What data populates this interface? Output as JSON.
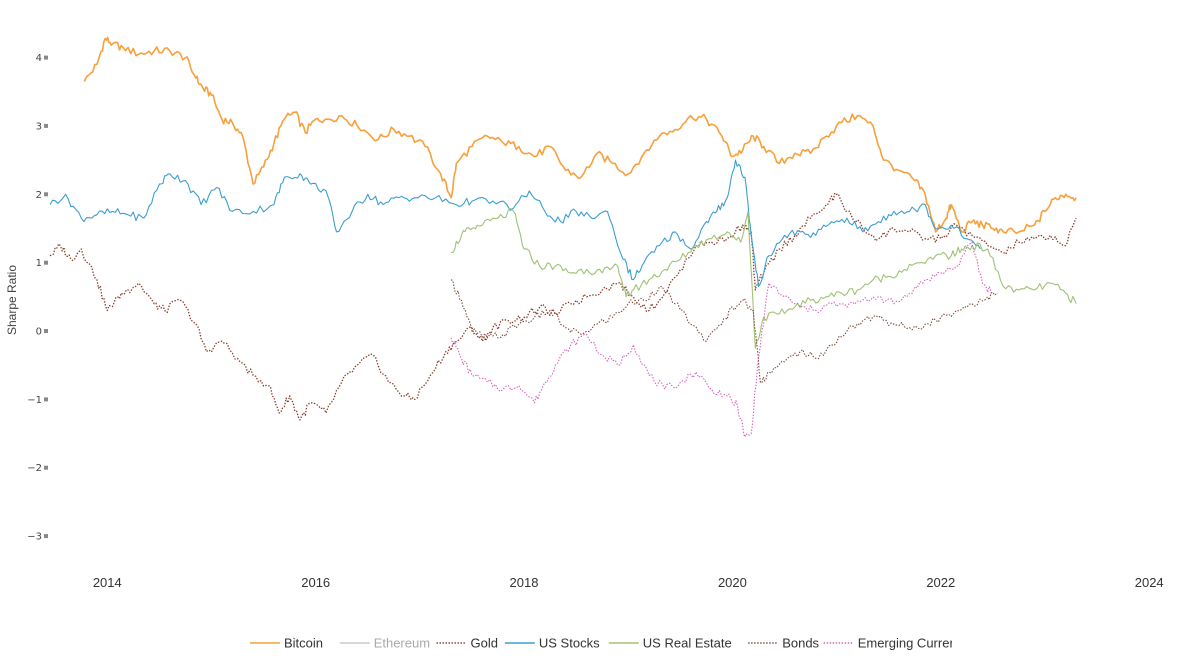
{
  "chart_data": {
    "type": "line",
    "title": "",
    "xlabel": "",
    "ylabel": "Sharpe Ratio",
    "xlim": [
      2013.45,
      2024.2
    ],
    "ylim": [
      -3.35,
      4.55
    ],
    "x_ticks": [
      2014,
      2016,
      2018,
      2020,
      2022,
      2024
    ],
    "x_tick_labels": [
      "2014",
      "2016",
      "2018",
      "2020",
      "2022",
      "2024"
    ],
    "y_ticks": [
      -3,
      -2,
      -1,
      0,
      1,
      2,
      3,
      4
    ],
    "y_tick_labels": [
      "−3",
      "−2",
      "−1",
      "0",
      "1",
      "2",
      "3",
      "4"
    ],
    "grid": false,
    "legend_position": "bottom",
    "series": [
      {
        "name": "Bitcoin",
        "color": "#f7a03c",
        "dash": "solid",
        "width": 1.6,
        "visible": true,
        "x": [
          2013.78,
          2013.9,
          2013.98,
          2014.05,
          2014.15,
          2014.3,
          2014.45,
          2014.6,
          2014.75,
          2014.85,
          2014.92,
          2015.0,
          2015.1,
          2015.2,
          2015.3,
          2015.4,
          2015.5,
          2015.6,
          2015.7,
          2015.8,
          2015.9,
          2016.0,
          2016.1,
          2016.25,
          2016.4,
          2016.6,
          2016.75,
          2016.9,
          2017.05,
          2017.2,
          2017.3,
          2017.35,
          2017.5,
          2017.65,
          2017.8,
          2017.95,
          2018.1,
          2018.25,
          2018.4,
          2018.55,
          2018.7,
          2018.85,
          2019.0,
          2019.15,
          2019.3,
          2019.45,
          2019.6,
          2019.75,
          2019.9,
          2020.0,
          2020.1,
          2020.2,
          2020.3,
          2020.45,
          2020.6,
          2020.75,
          2020.9,
          2021.05,
          2021.2,
          2021.35,
          2021.45,
          2021.6,
          2021.75,
          2021.85,
          2021.95,
          2022.05,
          2022.1,
          2022.2,
          2022.3,
          2022.4,
          2022.5,
          2022.6,
          2022.75,
          2022.9,
          2023.0,
          2023.1,
          2023.2,
          2023.3
        ],
        "y": [
          3.65,
          3.9,
          4.28,
          4.2,
          4.15,
          4.05,
          4.1,
          4.1,
          4.0,
          3.7,
          3.55,
          3.45,
          3.1,
          3.05,
          2.85,
          2.15,
          2.4,
          2.75,
          3.1,
          3.2,
          2.9,
          3.1,
          3.1,
          3.15,
          3.0,
          2.8,
          2.95,
          2.85,
          2.7,
          2.3,
          1.95,
          2.45,
          2.7,
          2.85,
          2.75,
          2.7,
          2.55,
          2.7,
          2.35,
          2.25,
          2.6,
          2.45,
          2.3,
          2.6,
          2.85,
          2.95,
          3.15,
          3.1,
          2.85,
          2.55,
          2.65,
          2.85,
          2.7,
          2.45,
          2.6,
          2.6,
          2.85,
          3.05,
          3.15,
          3.0,
          2.5,
          2.35,
          2.2,
          2.0,
          1.45,
          1.65,
          1.85,
          1.45,
          1.6,
          1.55,
          1.5,
          1.45,
          1.45,
          1.55,
          1.75,
          1.95,
          2.0,
          1.95
        ]
      },
      {
        "name": "Ethereum",
        "color": "#cccccc",
        "dash": "solid",
        "width": 1.2,
        "visible": false,
        "x": [],
        "y": []
      },
      {
        "name": "Gold",
        "color": "#8c3a2a",
        "dash": "dot",
        "width": 1.3,
        "visible": true,
        "x": [
          2013.45,
          2013.55,
          2013.65,
          2013.75,
          2013.9,
          2014.0,
          2014.1,
          2014.2,
          2014.3,
          2014.45,
          2014.55,
          2014.7,
          2014.85,
          2014.95,
          2015.1,
          2015.25,
          2015.4,
          2015.55,
          2015.65,
          2015.75,
          2015.85,
          2015.95,
          2016.1,
          2016.25,
          2016.4,
          2016.55,
          2016.7,
          2016.85,
          2016.95,
          2017.1,
          2017.25,
          2017.35,
          2017.5,
          2017.6,
          2017.7,
          2017.85,
          2018.0,
          2018.15,
          2018.3,
          2018.45,
          2018.6,
          2018.75,
          2018.9,
          2019.05,
          2019.2,
          2019.35,
          2019.5,
          2019.65,
          2019.8,
          2019.95,
          2020.1,
          2020.18,
          2020.22,
          2020.3,
          2020.45,
          2020.6,
          2020.75,
          2020.9,
          2021.0,
          2021.1,
          2021.25,
          2021.4,
          2021.55,
          2021.7,
          2021.85,
          2022.0,
          2022.15,
          2022.3,
          2022.45,
          2022.6,
          2022.75,
          2022.9,
          2023.05,
          2023.2,
          2023.3
        ],
        "y": [
          1.1,
          1.25,
          1.05,
          1.2,
          0.75,
          0.3,
          0.5,
          0.6,
          0.7,
          0.4,
          0.3,
          0.45,
          0.1,
          -0.3,
          -0.15,
          -0.4,
          -0.65,
          -0.8,
          -1.2,
          -0.95,
          -1.3,
          -1.05,
          -1.2,
          -0.75,
          -0.5,
          -0.35,
          -0.75,
          -0.95,
          -1.0,
          -0.65,
          -0.3,
          -0.15,
          0.05,
          -0.15,
          0.05,
          0.15,
          0.2,
          0.35,
          0.25,
          0.4,
          0.5,
          0.6,
          0.7,
          0.5,
          0.3,
          0.55,
          0.9,
          1.25,
          1.3,
          1.35,
          1.55,
          1.45,
          0.6,
          0.85,
          1.2,
          1.4,
          1.65,
          1.85,
          2.0,
          1.75,
          1.5,
          1.35,
          1.5,
          1.45,
          1.35,
          1.35,
          1.55,
          1.4,
          1.25,
          1.15,
          1.3,
          1.35,
          1.4,
          1.25,
          1.65
        ]
      },
      {
        "name": "US Stocks",
        "color": "#3a9fd0",
        "dash": "solid",
        "width": 1.1,
        "visible": true,
        "x": [
          2013.45,
          2013.6,
          2013.75,
          2013.9,
          2014.05,
          2014.2,
          2014.35,
          2014.5,
          2014.6,
          2014.75,
          2014.9,
          2015.05,
          2015.2,
          2015.4,
          2015.6,
          2015.7,
          2015.85,
          2015.95,
          2016.1,
          2016.2,
          2016.35,
          2016.5,
          2016.65,
          2016.8,
          2016.95,
          2017.15,
          2017.35,
          2017.5,
          2017.7,
          2017.9,
          2018.05,
          2018.2,
          2018.35,
          2018.5,
          2018.65,
          2018.8,
          2018.95,
          2019.05,
          2019.15,
          2019.3,
          2019.45,
          2019.6,
          2019.75,
          2019.85,
          2019.95,
          2020.03,
          2020.12,
          2020.18,
          2020.25,
          2020.35,
          2020.5,
          2020.65,
          2020.8,
          2020.95,
          2021.1,
          2021.25,
          2021.4,
          2021.55,
          2021.7,
          2021.85,
          2021.95,
          2022.1,
          2022.25,
          2022.38
        ],
        "y": [
          1.85,
          2.0,
          1.65,
          1.7,
          1.75,
          1.7,
          1.65,
          2.15,
          2.3,
          2.2,
          1.85,
          2.1,
          1.75,
          1.75,
          1.85,
          2.25,
          2.3,
          2.15,
          2.05,
          1.45,
          1.75,
          2.0,
          1.85,
          1.95,
          1.95,
          1.95,
          1.85,
          1.9,
          1.9,
          1.8,
          2.05,
          1.75,
          1.6,
          1.75,
          1.65,
          1.75,
          1.05,
          0.75,
          1.0,
          1.25,
          1.45,
          1.2,
          1.6,
          1.75,
          1.95,
          2.5,
          2.25,
          1.4,
          0.65,
          1.1,
          1.4,
          1.45,
          1.4,
          1.6,
          1.65,
          1.45,
          1.6,
          1.75,
          1.75,
          1.85,
          1.5,
          1.55,
          1.35,
          1.2
        ]
      },
      {
        "name": "US Real Estate",
        "color": "#9fc274",
        "dash": "solid",
        "width": 1.1,
        "visible": true,
        "x": [
          2017.3,
          2017.4,
          2017.5,
          2017.6,
          2017.75,
          2017.9,
          2018.0,
          2018.15,
          2018.3,
          2018.45,
          2018.6,
          2018.75,
          2018.9,
          2018.98,
          2019.05,
          2019.2,
          2019.35,
          2019.5,
          2019.65,
          2019.8,
          2019.95,
          2020.08,
          2020.15,
          2020.22,
          2020.3,
          2020.45,
          2020.6,
          2020.75,
          2020.9,
          2021.05,
          2021.2,
          2021.35,
          2021.5,
          2021.65,
          2021.8,
          2021.95,
          2022.1,
          2022.2,
          2022.3,
          2022.45,
          2022.6,
          2022.75,
          2022.9,
          2023.05,
          2023.2,
          2023.3
        ],
        "y": [
          1.15,
          1.4,
          1.5,
          1.55,
          1.65,
          1.75,
          1.2,
          0.95,
          0.95,
          0.85,
          0.9,
          0.85,
          0.95,
          0.5,
          0.6,
          0.75,
          0.9,
          1.05,
          1.25,
          1.35,
          1.45,
          1.3,
          1.75,
          -0.25,
          0.2,
          0.25,
          0.35,
          0.45,
          0.5,
          0.55,
          0.6,
          0.75,
          0.8,
          0.9,
          1.0,
          1.1,
          1.1,
          1.2,
          1.25,
          1.2,
          0.65,
          0.6,
          0.6,
          0.7,
          0.55,
          0.4
        ]
      },
      {
        "name": "Bonds",
        "color": "#7a4a3a",
        "dash": "dot",
        "width": 1.1,
        "visible": true,
        "x": [
          2017.3,
          2017.4,
          2017.5,
          2017.65,
          2017.8,
          2017.95,
          2018.1,
          2018.25,
          2018.4,
          2018.55,
          2018.7,
          2018.85,
          2019.0,
          2019.15,
          2019.3,
          2019.45,
          2019.6,
          2019.75,
          2019.9,
          2020.0,
          2020.1,
          2020.2,
          2020.27,
          2020.35,
          2020.5,
          2020.65,
          2020.8,
          2020.95,
          2021.1,
          2021.25,
          2021.4,
          2021.55,
          2021.7,
          2021.85,
          2022.0,
          2022.15,
          2022.3,
          2022.45,
          2022.55
        ],
        "y": [
          0.75,
          0.45,
          0.0,
          -0.1,
          -0.05,
          0.1,
          0.2,
          0.3,
          0.05,
          -0.05,
          0.1,
          0.2,
          0.4,
          0.45,
          0.65,
          0.4,
          0.1,
          -0.15,
          0.1,
          0.35,
          0.45,
          0.3,
          -0.75,
          -0.6,
          -0.45,
          -0.3,
          -0.4,
          -0.2,
          0.0,
          0.15,
          0.2,
          0.1,
          0.05,
          0.1,
          0.2,
          0.3,
          0.4,
          0.5,
          0.55
        ]
      },
      {
        "name": "Emerging Currencies",
        "color": "#d65fb8",
        "dash": "dot",
        "width": 1.1,
        "visible": true,
        "x": [
          2017.3,
          2017.4,
          2017.5,
          2017.65,
          2017.8,
          2017.95,
          2018.1,
          2018.2,
          2018.3,
          2018.45,
          2018.6,
          2018.75,
          2018.9,
          2019.05,
          2019.2,
          2019.35,
          2019.5,
          2019.65,
          2019.8,
          2019.95,
          2020.05,
          2020.12,
          2020.18,
          2020.25,
          2020.35,
          2020.5,
          2020.65,
          2020.8,
          2020.95,
          2021.1,
          2021.25,
          2021.4,
          2021.55,
          2021.7,
          2021.85,
          2022.0,
          2022.15,
          2022.3,
          2022.4,
          2022.5
        ],
        "y": [
          -0.1,
          -0.4,
          -0.65,
          -0.75,
          -0.85,
          -0.8,
          -1.05,
          -0.75,
          -0.5,
          -0.2,
          -0.05,
          -0.35,
          -0.5,
          -0.2,
          -0.65,
          -0.85,
          -0.75,
          -0.6,
          -0.85,
          -0.95,
          -1.1,
          -1.55,
          -1.5,
          -0.4,
          0.7,
          0.5,
          0.35,
          0.3,
          0.4,
          0.35,
          0.45,
          0.5,
          0.4,
          0.55,
          0.75,
          0.85,
          0.95,
          1.3,
          0.7,
          0.55
        ]
      }
    ]
  }
}
